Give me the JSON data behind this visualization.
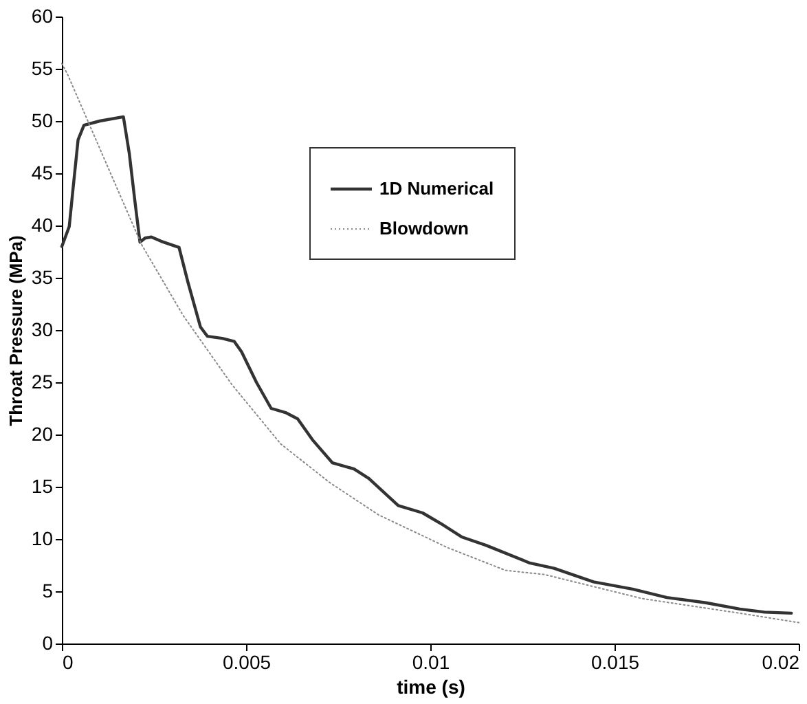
{
  "chart_data": {
    "type": "line",
    "xlabel": "time (s)",
    "ylabel": "Throat Pressure (MPa)",
    "xlim": [
      0,
      0.02
    ],
    "ylim": [
      0,
      60
    ],
    "xticks": [
      0,
      0.005,
      0.01,
      0.015,
      0.02
    ],
    "yticks": [
      0,
      5,
      10,
      15,
      20,
      25,
      30,
      35,
      40,
      45,
      50,
      55,
      60
    ],
    "grid": false,
    "legend": "top right",
    "marker": "none",
    "series": [
      {
        "name": "1D Numerical",
        "color": "#333333",
        "line_style": "solid",
        "x": [
          0,
          0.0002,
          0.0003,
          0.00044,
          0.0006,
          0.00103,
          0.00167,
          0.00183,
          0.00199,
          0.00212,
          0.00226,
          0.00243,
          0.00269,
          0.00318,
          0.00342,
          0.00376,
          0.00395,
          0.00435,
          0.00468,
          0.00488,
          0.00528,
          0.00568,
          0.00607,
          0.0064,
          0.0068,
          0.00734,
          0.00793,
          0.00833,
          0.00913,
          0.00979,
          0.01032,
          0.01085,
          0.01151,
          0.0127,
          0.01336,
          0.01443,
          0.01549,
          0.01642,
          0.01748,
          0.0184,
          0.01907,
          0.0198
        ],
        "values": [
          38.0,
          39.9,
          43.4,
          48.2,
          49.6,
          50.0,
          50.4,
          46.9,
          42.1,
          38.4,
          38.8,
          38.9,
          38.5,
          37.9,
          34.6,
          30.3,
          29.4,
          29.2,
          28.9,
          27.9,
          25.0,
          22.5,
          22.1,
          21.5,
          19.5,
          17.3,
          16.7,
          15.8,
          13.2,
          12.5,
          11.4,
          10.2,
          9.4,
          7.7,
          7.2,
          5.9,
          5.2,
          4.4,
          3.9,
          3.3,
          3.0,
          2.9
        ]
      },
      {
        "name": "Blowdown",
        "color": "#888888",
        "line_style": "dotted",
        "x": [
          0,
          0.00015,
          0.00084,
          0.00216,
          0.00329,
          0.00461,
          0.00594,
          0.00727,
          0.0086,
          0.00992,
          0.01045,
          0.01204,
          0.0131,
          0.01575,
          0.0184,
          0.02
        ],
        "values": [
          55.5,
          54.5,
          48.9,
          38.2,
          31.4,
          24.8,
          19.1,
          15.4,
          12.3,
          10.1,
          9.2,
          7.0,
          6.6,
          4.3,
          2.9,
          2.0
        ]
      }
    ]
  }
}
